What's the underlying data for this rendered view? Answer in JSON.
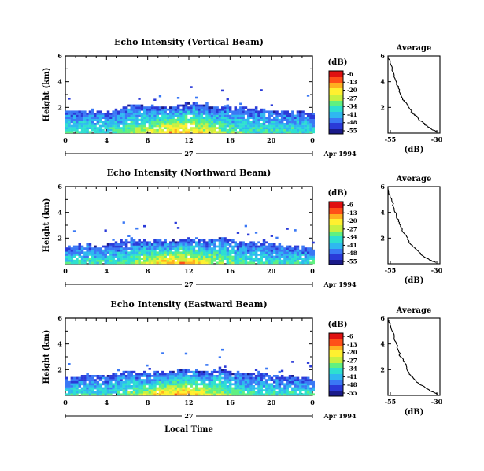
{
  "figure": {
    "date_label": "Apr 1994",
    "day_label": "27",
    "bottom_xlabel": "Local Time",
    "colorbar_units": "(dB)"
  },
  "colorbar": {
    "ticks": [
      "-6",
      "-13",
      "-20",
      "-27",
      "-34",
      "-41",
      "-48",
      "-55"
    ],
    "colors": [
      "#1a1a8a",
      "#2a3ad8",
      "#3a78f5",
      "#2fb8f0",
      "#2ee0d0",
      "#60f080",
      "#c8f040",
      "#fff030",
      "#ffb020",
      "#ff5018",
      "#e01010"
    ]
  },
  "chart_data": [
    {
      "type": "heatmap",
      "title": "Echo Intensity (Vertical Beam)",
      "xlabel": "",
      "ylabel": "Height (km)",
      "xlim": [
        0,
        24
      ],
      "ylim": [
        0,
        6
      ],
      "xticks": [
        "0",
        "4",
        "8",
        "12",
        "16",
        "20",
        "0"
      ],
      "yticks": [
        "2",
        "4",
        "6"
      ],
      "color_units": "(dB)",
      "color_range": [
        -55,
        -6
      ],
      "layer_top_km": [
        1.7,
        1.7,
        1.8,
        1.6,
        1.6,
        1.8,
        2.1,
        2.2,
        2.1,
        2.0,
        2.0,
        2.1,
        2.2,
        2.2,
        2.1,
        2.0,
        2.0,
        1.9,
        1.9,
        1.8,
        1.7,
        1.6,
        1.6,
        1.6,
        1.5
      ],
      "profile": {
        "title": "Average",
        "xlabel": "(dB)",
        "xlim": [
          -55,
          -30
        ],
        "xticks": [
          "-55",
          "-30"
        ],
        "ylim": [
          0,
          6
        ],
        "yticks": [
          "2",
          "4",
          "6"
        ],
        "height_km": [
          0.1,
          0.3,
          0.5,
          0.8,
          1.0,
          1.3,
          1.5,
          1.8,
          2.0,
          2.3,
          2.6,
          3.0,
          3.5,
          4.0,
          4.5,
          5.0,
          5.5,
          5.9
        ],
        "db": [
          -31,
          -34,
          -36,
          -38,
          -40,
          -41,
          -43,
          -44,
          -45,
          -46,
          -48,
          -49,
          -50,
          -51,
          -52,
          -53,
          -54,
          -55
        ]
      }
    },
    {
      "type": "heatmap",
      "title": "Echo Intensity (Northward Beam)",
      "xlabel": "",
      "ylabel": "Height (km)",
      "xlim": [
        0,
        24
      ],
      "ylim": [
        0,
        6
      ],
      "xticks": [
        "0",
        "4",
        "8",
        "12",
        "16",
        "20",
        "0"
      ],
      "yticks": [
        "2",
        "4",
        "6"
      ],
      "color_units": "(dB)",
      "color_range": [
        -55,
        -6
      ],
      "layer_top_km": [
        1.2,
        1.3,
        1.4,
        1.3,
        1.4,
        1.6,
        1.8,
        1.8,
        1.7,
        1.8,
        1.7,
        1.8,
        1.9,
        1.8,
        1.8,
        2.0,
        1.8,
        1.6,
        1.5,
        1.7,
        1.5,
        1.4,
        1.3,
        1.3,
        1.2
      ],
      "profile": {
        "title": "Average",
        "xlabel": "(dB)",
        "xlim": [
          -55,
          -30
        ],
        "xticks": [
          "-55",
          "-30"
        ],
        "ylim": [
          0,
          6
        ],
        "yticks": [
          "2",
          "4",
          "6"
        ],
        "height_km": [
          0.1,
          0.3,
          0.6,
          0.9,
          1.2,
          1.5,
          1.8,
          2.1,
          2.5,
          2.9,
          3.3,
          3.8,
          4.3,
          4.8,
          5.3,
          5.8
        ],
        "db": [
          -32,
          -35,
          -38,
          -40,
          -42,
          -44,
          -45,
          -46,
          -48,
          -49,
          -50,
          -51,
          -52,
          -53,
          -54,
          -55
        ]
      }
    },
    {
      "type": "heatmap",
      "title": "Echo Intensity (Eastward Beam)",
      "xlabel": "Local Time",
      "ylabel": "Height (km)",
      "xlim": [
        0,
        24
      ],
      "ylim": [
        0,
        6
      ],
      "xticks": [
        "0",
        "4",
        "8",
        "12",
        "16",
        "20",
        "0"
      ],
      "yticks": [
        "2",
        "4",
        "6"
      ],
      "color_units": "(dB)",
      "color_range": [
        -55,
        -6
      ],
      "layer_top_km": [
        1.3,
        1.4,
        1.6,
        1.5,
        1.4,
        1.7,
        1.8,
        1.8,
        1.7,
        1.8,
        1.8,
        1.9,
        2.0,
        1.9,
        1.8,
        2.1,
        1.8,
        1.7,
        1.6,
        1.7,
        1.5,
        1.4,
        1.4,
        1.3,
        1.3
      ],
      "profile": {
        "title": "Average",
        "xlabel": "(dB)",
        "xlim": [
          -55,
          -30
        ],
        "xticks": [
          "-55",
          "-30"
        ],
        "ylim": [
          0,
          6
        ],
        "yticks": [
          "2",
          "4",
          "6"
        ],
        "height_km": [
          0.1,
          0.3,
          0.6,
          0.9,
          1.2,
          1.5,
          1.8,
          2.2,
          2.6,
          3.0,
          3.5,
          4.0,
          4.5,
          5.0,
          5.5,
          5.9
        ],
        "db": [
          -31,
          -34,
          -37,
          -40,
          -42,
          -44,
          -45,
          -46,
          -47,
          -49,
          -50,
          -51,
          -52,
          -53,
          -54,
          -55
        ]
      }
    }
  ]
}
